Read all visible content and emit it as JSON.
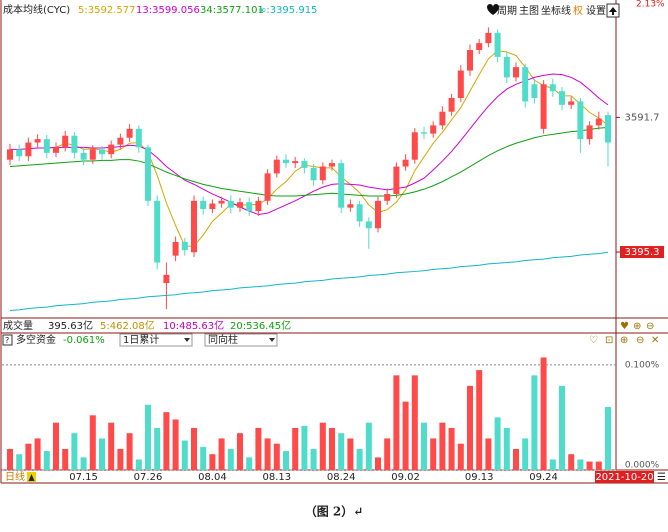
{
  "toolbar": {
    "items": [
      "周期",
      "主图",
      "坐标线",
      "权",
      "设置"
    ]
  },
  "volume_header": [
    "成交量",
    "395.63亿",
    "5:462.08亿",
    "10:485.63亿",
    "20:536.45亿"
  ],
  "chart_data": [
    {
      "type": "candlestick",
      "title": "成本均线(CYC)",
      "top_label": "2.13%",
      "up_color": "#ff4a4a",
      "down_color": "#4fdccb",
      "categories": [
        null,
        null,
        null,
        null,
        null,
        null,
        null,
        null,
        "07.15",
        null,
        null,
        null,
        null,
        null,
        null,
        "07.26",
        null,
        null,
        null,
        null,
        null,
        null,
        "08.04",
        null,
        null,
        null,
        null,
        null,
        null,
        "08.13",
        null,
        null,
        null,
        null,
        null,
        null,
        "08.24",
        null,
        null,
        null,
        null,
        null,
        null,
        "09.02",
        null,
        null,
        null,
        null,
        null,
        null,
        null,
        "09.13",
        null,
        null,
        null,
        null,
        null,
        null,
        "09.24",
        null,
        null,
        null,
        null,
        null,
        null,
        null
      ],
      "open": [
        3530,
        3545,
        3535,
        3555,
        3560,
        3540,
        3548,
        3565,
        3540,
        3530,
        3545,
        3538,
        3552,
        3562,
        3575,
        3548,
        3470,
        3350,
        3390,
        3410,
        3395,
        3470,
        3458,
        3466,
        3470,
        3460,
        3468,
        3455,
        3470,
        3510,
        3530,
        3525,
        3528,
        3518,
        3500,
        3520,
        3525,
        3460,
        3465,
        3440,
        3430,
        3470,
        3480,
        3520,
        3530,
        3570,
        3568,
        3580,
        3600,
        3620,
        3660,
        3690,
        3700,
        3715,
        3680,
        3650,
        3665,
        3640,
        3575,
        3640,
        3630,
        3610,
        3615,
        3560,
        3580,
        3595
      ],
      "high": [
        3553,
        3552,
        3562,
        3567,
        3566,
        3555,
        3572,
        3570,
        3548,
        3551,
        3550,
        3558,
        3568,
        3582,
        3580,
        3552,
        3478,
        3380,
        3418,
        3416,
        3478,
        3476,
        3472,
        3476,
        3478,
        3474,
        3475,
        3476,
        3516,
        3536,
        3538,
        3534,
        3532,
        3524,
        3526,
        3530,
        3530,
        3472,
        3470,
        3446,
        3476,
        3488,
        3526,
        3538,
        3576,
        3578,
        3586,
        3608,
        3626,
        3668,
        3698,
        3706,
        3723,
        3720,
        3688,
        3672,
        3670,
        3648,
        3646,
        3648,
        3636,
        3622,
        3620,
        3586,
        3600,
        3600
      ],
      "low": [
        3522,
        3528,
        3528,
        3548,
        3532,
        3534,
        3542,
        3532,
        3522,
        3524,
        3530,
        3532,
        3546,
        3556,
        3540,
        3462,
        3370,
        3312,
        3382,
        3390,
        3388,
        3450,
        3452,
        3460,
        3452,
        3454,
        3448,
        3448,
        3464,
        3504,
        3518,
        3518,
        3510,
        3492,
        3494,
        3514,
        3452,
        3454,
        3432,
        3400,
        3424,
        3464,
        3474,
        3514,
        3524,
        3560,
        3562,
        3574,
        3594,
        3614,
        3652,
        3684,
        3694,
        3672,
        3642,
        3644,
        3606,
        3612,
        3568,
        3622,
        3602,
        3604,
        3540,
        3552,
        3574,
        3520
      ],
      "close": [
        3545,
        3535,
        3555,
        3560,
        3540,
        3548,
        3565,
        3540,
        3530,
        3545,
        3538,
        3552,
        3562,
        3575,
        3548,
        3470,
        3380,
        3362,
        3410,
        3398,
        3470,
        3458,
        3466,
        3470,
        3460,
        3468,
        3455,
        3470,
        3510,
        3530,
        3525,
        3528,
        3518,
        3500,
        3520,
        3525,
        3460,
        3465,
        3440,
        3430,
        3470,
        3480,
        3520,
        3530,
        3570,
        3568,
        3580,
        3600,
        3620,
        3660,
        3690,
        3700,
        3715,
        3680,
        3650,
        3665,
        3615,
        3620,
        3640,
        3630,
        3610,
        3615,
        3560,
        3580,
        3590,
        3555
      ],
      "series": [
        {
          "name": "5:3592.577",
          "color": "#d4a800",
          "values": [
            null,
            null,
            null,
            null,
            3547,
            3548,
            3554,
            3551,
            3545,
            3546,
            3544,
            3541,
            3545,
            3554,
            3555,
            3541,
            3507,
            3467,
            3434,
            3404,
            3404,
            3420,
            3440,
            3452,
            3465,
            3464,
            3464,
            3465,
            3473,
            3487,
            3498,
            3513,
            3522,
            3520,
            3518,
            3518,
            3505,
            3494,
            3482,
            3464,
            3453,
            3457,
            3468,
            3486,
            3514,
            3534,
            3554,
            3570,
            3588,
            3606,
            3630,
            3654,
            3677,
            3689,
            3687,
            3682,
            3665,
            3646,
            3638,
            3634,
            3623,
            3623,
            3611,
            3599,
            3591,
            3580
          ]
        },
        {
          "name": "13:3599.056",
          "color": "#d000d0",
          "values": [
            3545,
            3545,
            3546,
            3547,
            3547,
            3548,
            3548,
            3548,
            3548,
            3547,
            3547,
            3548,
            3549,
            3551,
            3550,
            3544,
            3533,
            3520,
            3510,
            3500,
            3494,
            3487,
            3480,
            3474,
            3468,
            3461,
            3455,
            3450,
            3452,
            3458,
            3464,
            3470,
            3477,
            3484,
            3490,
            3494,
            3495,
            3494,
            3493,
            3490,
            3488,
            3486,
            3488,
            3490,
            3496,
            3503,
            3515,
            3528,
            3542,
            3558,
            3575,
            3592,
            3608,
            3622,
            3633,
            3640,
            3645,
            3650,
            3653,
            3655,
            3654,
            3650,
            3643,
            3632,
            3620,
            3610
          ]
        },
        {
          "name": "34:3577.101",
          "color": "#10a010",
          "values": [
            3520,
            3521,
            3522,
            3523,
            3524,
            3525,
            3526,
            3527,
            3528,
            3528,
            3529,
            3529,
            3530,
            3530,
            3528,
            3524,
            3518,
            3512,
            3507,
            3502,
            3498,
            3494,
            3491,
            3488,
            3486,
            3484,
            3482,
            3480,
            3478,
            3477,
            3477,
            3477,
            3478,
            3479,
            3480,
            3481,
            3480,
            3479,
            3478,
            3477,
            3477,
            3477,
            3478,
            3480,
            3483,
            3487,
            3492,
            3498,
            3505,
            3512,
            3520,
            3528,
            3536,
            3543,
            3549,
            3554,
            3558,
            3562,
            3565,
            3567,
            3569,
            3571,
            3572,
            3574,
            3576,
            3577
          ]
        },
        {
          "name": "∞:3395.915",
          "color": "#10b8c8",
          "values": [
            3310,
            3311,
            3313,
            3314,
            3315,
            3317,
            3318,
            3319,
            3320,
            3322,
            3323,
            3324,
            3326,
            3327,
            3328,
            3330,
            3331,
            3332,
            3333,
            3335,
            3336,
            3337,
            3339,
            3340,
            3341,
            3343,
            3344,
            3345,
            3346,
            3348,
            3349,
            3350,
            3352,
            3353,
            3354,
            3356,
            3357,
            3358,
            3359,
            3361,
            3362,
            3363,
            3365,
            3366,
            3367,
            3368,
            3370,
            3371,
            3372,
            3374,
            3375,
            3376,
            3378,
            3379,
            3380,
            3381,
            3383,
            3384,
            3385,
            3387,
            3388,
            3389,
            3391,
            3392,
            3393,
            3395
          ]
        }
      ],
      "ylim": [
        3302,
        3760
      ],
      "yticks": [
        3591.7,
        3395.3
      ]
    },
    {
      "type": "bar",
      "title": "多空资金",
      "title_value": "-0.061%",
      "selectors": [
        "1日累计",
        "同向柱"
      ],
      "values": [
        0.02,
        0.015,
        0.025,
        0.03,
        0.018,
        0.045,
        0.02,
        0.035,
        0.012,
        0.052,
        0.03,
        0.045,
        0.02,
        0.035,
        0.01,
        0.062,
        0.04,
        0.055,
        0.048,
        0.028,
        0.04,
        0.022,
        0.015,
        0.03,
        0.02,
        0.035,
        0.012,
        0.04,
        0.03,
        0.025,
        0.018,
        0.04,
        0.042,
        0.02,
        0.045,
        0.04,
        0.035,
        0.03,
        0.02,
        0.045,
        0.012,
        0.03,
        0.09,
        0.065,
        0.09,
        0.045,
        0.03,
        0.045,
        0.04,
        0.025,
        0.08,
        0.095,
        0.03,
        0.05,
        0.04,
        0.02,
        0.03,
        0.09,
        0.107,
        0.01,
        0.08,
        0.015,
        0.01,
        0.008,
        0.008,
        0.06
      ],
      "ylim": [
        0,
        0.116
      ],
      "yticks": [
        {
          "value": 0.1,
          "label": "0.100%"
        },
        {
          "value": 0,
          "label": "0.000%"
        }
      ],
      "grid": true
    }
  ],
  "footer": {
    "period": "日线",
    "cursor_date": "2021-10-20"
  },
  "caption": "（图 2）↵"
}
